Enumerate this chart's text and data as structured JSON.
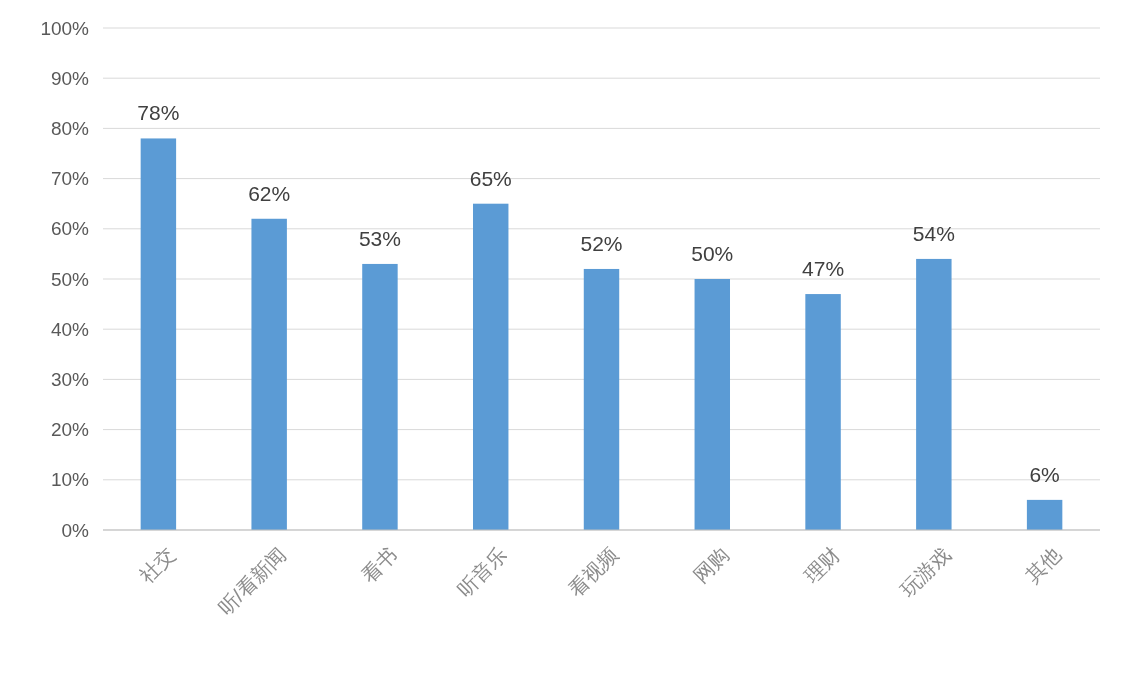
{
  "chart_data": {
    "type": "bar",
    "categories": [
      "社交",
      "听/看新闻",
      "看书",
      "听音乐",
      "看视频",
      "网购",
      "理财",
      "玩游戏",
      "其他"
    ],
    "values": [
      78,
      62,
      53,
      65,
      52,
      50,
      47,
      54,
      6
    ],
    "value_labels": [
      "78%",
      "62%",
      "53%",
      "65%",
      "52%",
      "50%",
      "47%",
      "54%",
      "6%"
    ],
    "color": "#5b9bd5",
    "ylim": [
      0,
      100
    ],
    "yticks": [
      {
        "value": 0,
        "label": "0%"
      },
      {
        "value": 10,
        "label": "10%"
      },
      {
        "value": 20,
        "label": "20%"
      },
      {
        "value": 30,
        "label": "30%"
      },
      {
        "value": 40,
        "label": "40%"
      },
      {
        "value": 50,
        "label": "50%"
      },
      {
        "value": 60,
        "label": "60%"
      },
      {
        "value": 70,
        "label": "70%"
      },
      {
        "value": 80,
        "label": "80%"
      },
      {
        "value": 90,
        "label": "90%"
      },
      {
        "value": 100,
        "label": "100%"
      }
    ],
    "grid": "y"
  }
}
